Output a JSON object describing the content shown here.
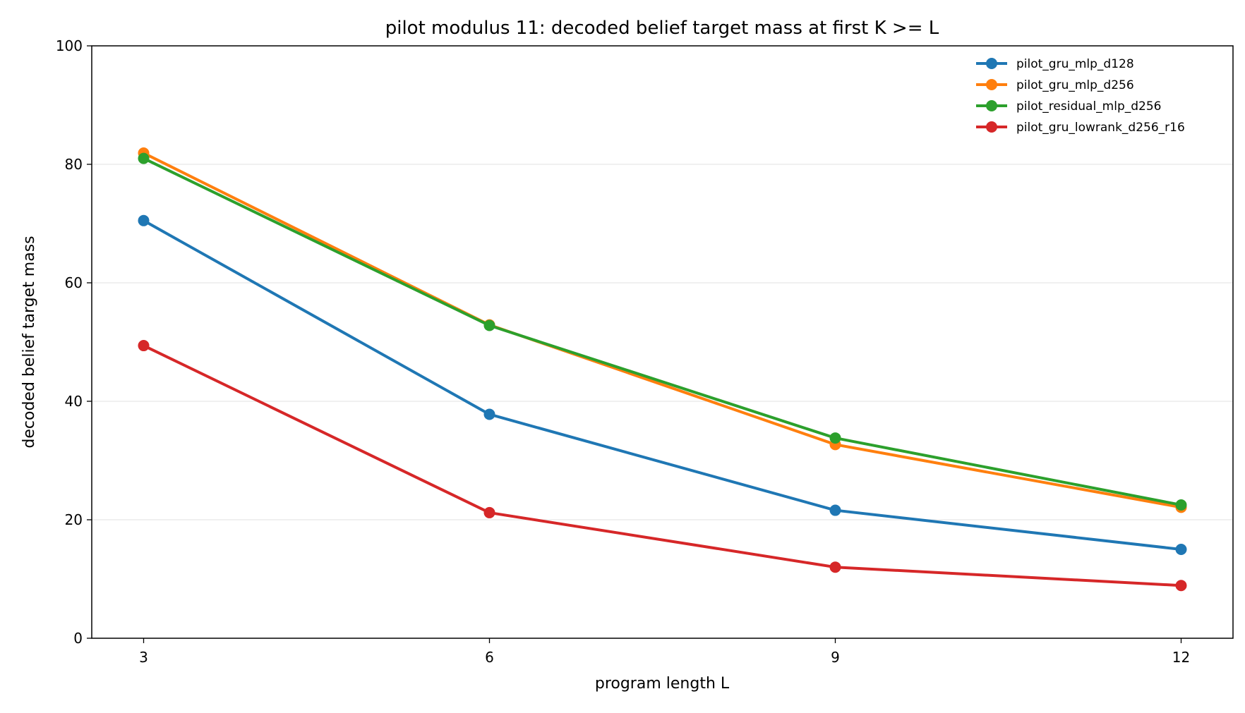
{
  "chart_data": {
    "type": "line",
    "title": "pilot modulus 11: decoded belief target mass at first K >= L",
    "xlabel": "program length L",
    "ylabel": "decoded belief target mass",
    "x": [
      3,
      6,
      9,
      12
    ],
    "x_ticks": [
      "3",
      "6",
      "9",
      "12"
    ],
    "y_ticks": [
      "0",
      "20",
      "40",
      "60",
      "80",
      "100"
    ],
    "xlim": [
      2.55,
      12.45
    ],
    "ylim": [
      0,
      100
    ],
    "grid": "horizontal",
    "legend_position": "top-right",
    "series": [
      {
        "name": "pilot_gru_mlp_d128",
        "color": "#1f77b4",
        "values": [
          70.5,
          37.8,
          21.6,
          15.0
        ]
      },
      {
        "name": "pilot_gru_mlp_d256",
        "color": "#ff7f0e",
        "values": [
          81.9,
          52.9,
          32.7,
          22.1
        ]
      },
      {
        "name": "pilot_residual_mlp_d256",
        "color": "#2ca02c",
        "values": [
          81.0,
          52.8,
          33.8,
          22.5
        ]
      },
      {
        "name": "pilot_gru_lowrank_d256_r16",
        "color": "#d62728",
        "values": [
          49.4,
          21.2,
          12.0,
          8.9
        ]
      }
    ]
  }
}
